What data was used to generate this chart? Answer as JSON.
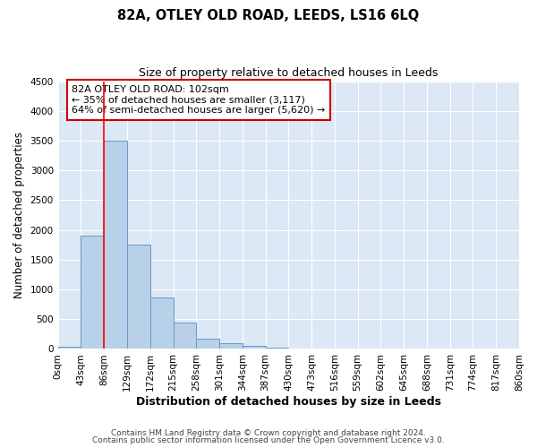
{
  "title": "82A, OTLEY OLD ROAD, LEEDS, LS16 6LQ",
  "subtitle": "Size of property relative to detached houses in Leeds",
  "xlabel": "Distribution of detached houses by size in Leeds",
  "ylabel": "Number of detached properties",
  "bar_values": [
    40,
    1900,
    3500,
    1750,
    860,
    450,
    175,
    90,
    55,
    25,
    10,
    5,
    0,
    0,
    0,
    0,
    0,
    0,
    0,
    0
  ],
  "bin_labels": [
    "0sqm",
    "43sqm",
    "86sqm",
    "129sqm",
    "172sqm",
    "215sqm",
    "258sqm",
    "301sqm",
    "344sqm",
    "387sqm",
    "430sqm",
    "473sqm",
    "516sqm",
    "559sqm",
    "602sqm",
    "645sqm",
    "688sqm",
    "731sqm",
    "774sqm",
    "817sqm",
    "860sqm"
  ],
  "bar_color": "#b8d0e8",
  "bar_edge_color": "#6699cc",
  "ylim": [
    0,
    4500
  ],
  "yticks": [
    0,
    500,
    1000,
    1500,
    2000,
    2500,
    3000,
    3500,
    4000,
    4500
  ],
  "red_line_x": 2.0,
  "annotation_text": "82A OTLEY OLD ROAD: 102sqm\n← 35% of detached houses are smaller (3,117)\n64% of semi-detached houses are larger (5,620) →",
  "annotation_box_color": "#ffffff",
  "annotation_box_edge_color": "#cc0000",
  "footnote1": "Contains HM Land Registry data © Crown copyright and database right 2024.",
  "footnote2": "Contains public sector information licensed under the Open Government Licence v3.0.",
  "background_color": "#dce8f5",
  "grid_color": "#ffffff",
  "fig_bg_color": "#ffffff",
  "title_fontsize": 10.5,
  "subtitle_fontsize": 9
}
